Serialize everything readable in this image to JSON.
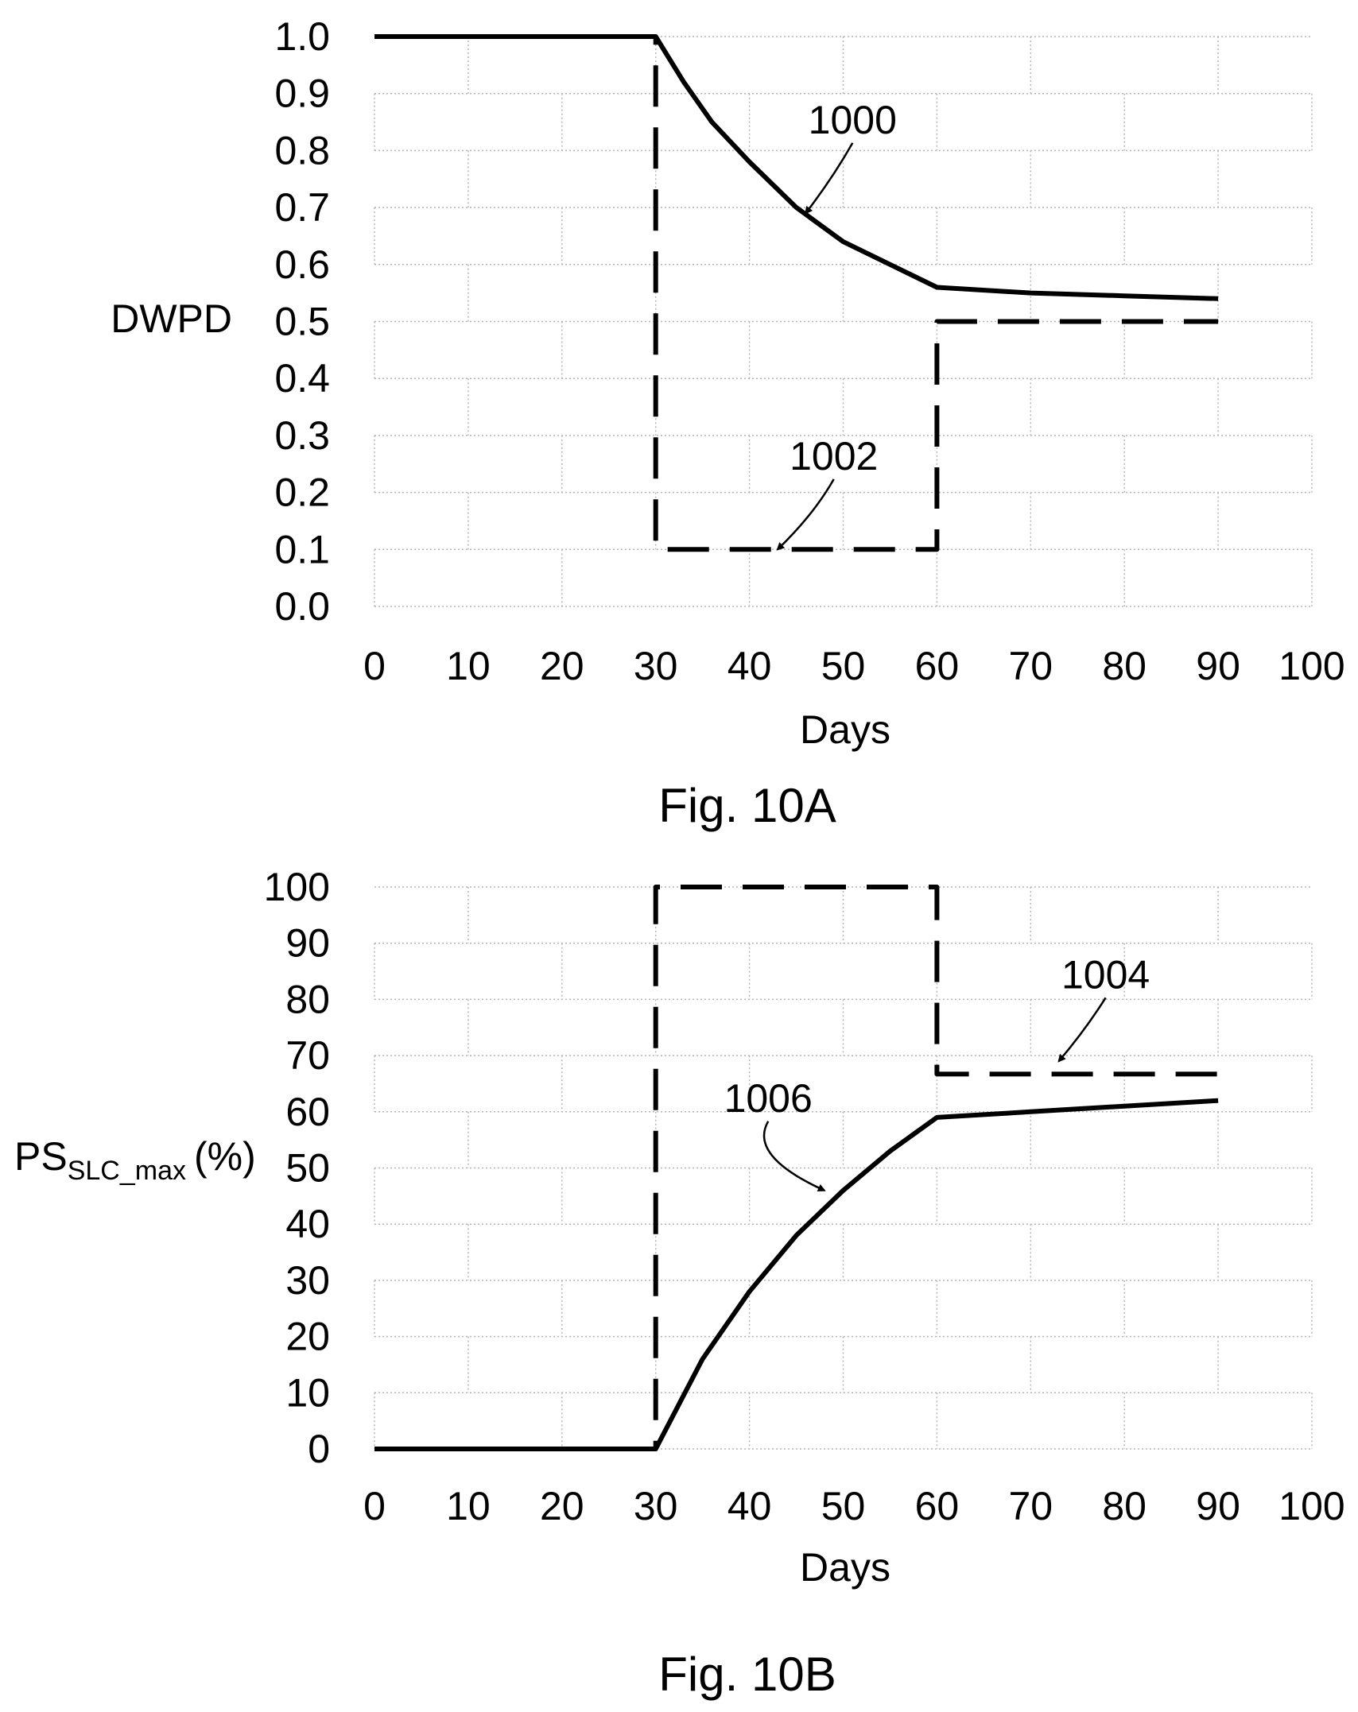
{
  "chart_data": [
    {
      "type": "line",
      "caption": "Fig. 10A",
      "xlabel": "Days",
      "ylabel": "DWPD",
      "xlim": [
        0,
        100
      ],
      "ylim": [
        0,
        1.0
      ],
      "x_ticks": [
        "0",
        "10",
        "20",
        "30",
        "40",
        "50",
        "60",
        "70",
        "80",
        "90",
        "100"
      ],
      "y_ticks": [
        "0.0",
        "0.1",
        "0.2",
        "0.3",
        "0.4",
        "0.5",
        "0.6",
        "0.7",
        "0.8",
        "0.9",
        "1.0"
      ],
      "grid": "dotted, brick pattern",
      "series": [
        {
          "label": "1000",
          "style": "solid",
          "color": "#000000",
          "x": [
            0,
            30,
            33,
            36,
            40,
            45,
            50,
            55,
            60,
            70,
            80,
            90
          ],
          "y": [
            1.0,
            1.0,
            0.92,
            0.85,
            0.78,
            0.7,
            0.64,
            0.6,
            0.56,
            0.55,
            0.545,
            0.54
          ]
        },
        {
          "label": "1002",
          "style": "dashed",
          "color": "#000000",
          "x": [
            0,
            30,
            30,
            60,
            60,
            90
          ],
          "y": [
            1.0,
            1.0,
            0.1,
            0.1,
            0.5,
            0.5
          ]
        }
      ],
      "annotations": [
        {
          "text": "1000",
          "x": 51,
          "y": 0.83,
          "target": [
            46,
            0.69
          ]
        },
        {
          "text": "1002",
          "x": 49,
          "y": 0.24,
          "target": [
            43,
            0.1
          ]
        }
      ]
    },
    {
      "type": "line",
      "caption": "Fig. 10B",
      "xlabel": "Days",
      "ylabel": "PS",
      "ylabel_subscript": "SLC_max",
      "ylabel_suffix": "(%)",
      "xlim": [
        0,
        100
      ],
      "ylim": [
        0,
        100
      ],
      "x_ticks": [
        "0",
        "10",
        "20",
        "30",
        "40",
        "50",
        "60",
        "70",
        "80",
        "90",
        "100"
      ],
      "y_ticks": [
        "0",
        "10",
        "20",
        "30",
        "40",
        "50",
        "60",
        "70",
        "80",
        "90",
        "100"
      ],
      "grid": "dotted, brick pattern",
      "series": [
        {
          "label": "1004",
          "style": "dashed",
          "color": "#000000",
          "x": [
            0,
            30,
            30,
            60,
            60,
            90
          ],
          "y": [
            0,
            0,
            100,
            100,
            66.7,
            66.7
          ]
        },
        {
          "label": "1006",
          "style": "solid",
          "color": "#000000",
          "x": [
            0,
            30,
            35,
            40,
            45,
            50,
            55,
            60,
            70,
            80,
            90
          ],
          "y": [
            0,
            0,
            16,
            28,
            38,
            46,
            53,
            59,
            60,
            61,
            62
          ]
        }
      ],
      "annotations": [
        {
          "text": "1004",
          "x": 78,
          "y": 82,
          "target": [
            73,
            69
          ]
        },
        {
          "text": "1006",
          "x": 42,
          "y": 60,
          "target": [
            48,
            46
          ]
        }
      ]
    }
  ]
}
